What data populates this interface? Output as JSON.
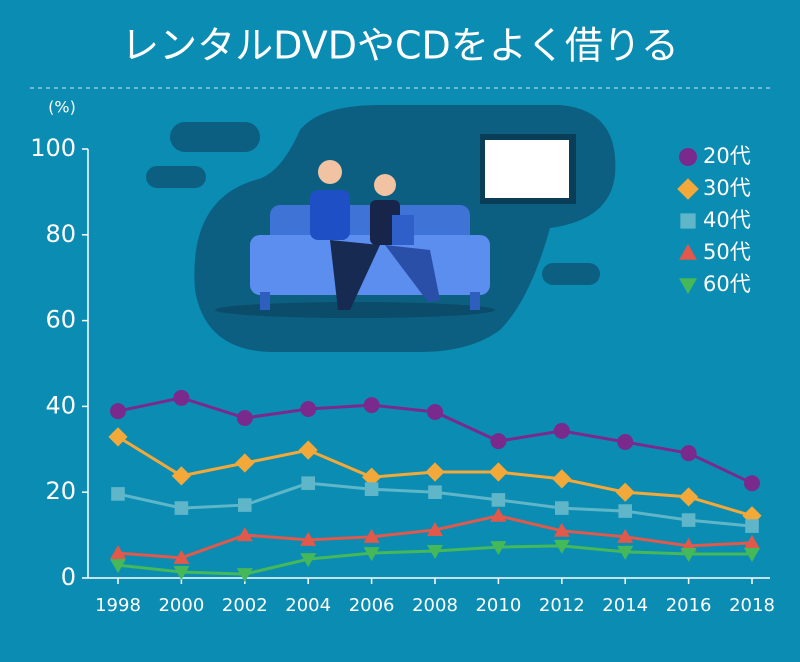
{
  "chart_data": {
    "type": "line",
    "title": "レンタルDVDやCDをよく借りる",
    "y_label": "(%)",
    "categories": [
      "1998",
      "2000",
      "2002",
      "2004",
      "2006",
      "2008",
      "2010",
      "2012",
      "2014",
      "2016",
      "2018"
    ],
    "series": [
      {
        "name": "20代",
        "color": "#7a2a8c",
        "marker": "circle",
        "values": [
          38.9,
          42,
          37.3,
          39.4,
          40.3,
          38.7,
          31.9,
          34.3,
          31.7,
          29.1,
          22.1
        ]
      },
      {
        "name": "30代",
        "color": "#f2a93a",
        "marker": "diamond",
        "values": [
          32.9,
          23.8,
          26.8,
          29.8,
          23.5,
          24.7,
          24.7,
          23.1,
          20,
          18.9,
          14.5
        ]
      },
      {
        "name": "40代",
        "color": "#5fb6c9",
        "marker": "square",
        "values": [
          19.6,
          16.3,
          17,
          22.1,
          20.7,
          20,
          18.2,
          16.3,
          15.6,
          13.5,
          12.1
        ]
      },
      {
        "name": "50代",
        "color": "#e0594b",
        "marker": "triangle-up",
        "values": [
          5.8,
          4.7,
          10,
          8.9,
          9.6,
          11.2,
          14.5,
          11,
          9.6,
          7.5,
          8.2
        ]
      },
      {
        "name": "60代",
        "color": "#45b85a",
        "marker": "triangle-down",
        "values": [
          3,
          1.4,
          0.9,
          4.4,
          5.8,
          6.3,
          7.2,
          7.5,
          6.1,
          5.6,
          5.6
        ]
      }
    ],
    "ylim": [
      0,
      100
    ],
    "yticks": [
      0,
      20,
      40,
      60,
      80,
      100
    ],
    "legend": "top-right"
  }
}
